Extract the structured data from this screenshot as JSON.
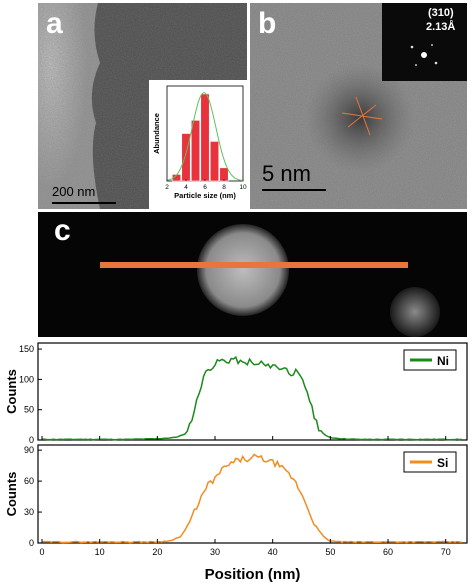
{
  "panels": {
    "a": {
      "letter": "a",
      "scalebar": "200 nm"
    },
    "b": {
      "letter": "b",
      "scalebar": "5 nm",
      "fft_plane": "(310)",
      "fft_spacing": "2.13Å"
    },
    "c": {
      "letter": "c"
    }
  },
  "colors": {
    "ni": "#1a8a1a",
    "si": "#f28c1e",
    "hist_bar": "#e8323c",
    "fit": "#5cc35c",
    "linescan": "#e8763a"
  },
  "chart_data": [
    {
      "type": "bar",
      "title": "",
      "xlabel": "Particle size (nm)",
      "ylabel": "Abundance",
      "xlim": [
        2,
        10
      ],
      "xticks": [
        "2",
        "4",
        "6",
        "8",
        "10"
      ],
      "bins": [
        3,
        4,
        5,
        6,
        7,
        8
      ],
      "values": [
        0.5,
        3.6,
        4.6,
        6.6,
        3.0,
        1.0
      ],
      "fit": "gaussian"
    },
    {
      "type": "line",
      "xlabel": "",
      "ylabel": "Counts",
      "xlim": [
        0,
        73
      ],
      "ylim": [
        0,
        160
      ],
      "yticks": [
        "0",
        "50",
        "100",
        "150"
      ],
      "series": [
        {
          "name": "Ni",
          "x": [
            0,
            5,
            10,
            15,
            20,
            23,
            25,
            26,
            27,
            28,
            29,
            30,
            31,
            32,
            33,
            34,
            35,
            36,
            37,
            38,
            39,
            40,
            41,
            42,
            43,
            44,
            45,
            46,
            47,
            48,
            49,
            50,
            52,
            55,
            60,
            65,
            70,
            73
          ],
          "y": [
            1,
            1,
            1,
            1,
            2,
            4,
            10,
            35,
            70,
            105,
            118,
            125,
            132,
            128,
            135,
            130,
            125,
            130,
            122,
            128,
            120,
            125,
            118,
            120,
            110,
            112,
            100,
            80,
            45,
            20,
            8,
            4,
            2,
            1,
            1,
            1,
            1,
            1
          ]
        }
      ]
    },
    {
      "type": "line",
      "xlabel": "Position (nm)",
      "ylabel": "Counts",
      "xlim": [
        0,
        73
      ],
      "ylim": [
        0,
        95
      ],
      "yticks": [
        "0",
        "30",
        "60",
        "90"
      ],
      "xticks": [
        "0",
        "10",
        "20",
        "30",
        "40",
        "50",
        "60",
        "70"
      ],
      "series": [
        {
          "name": "Si",
          "x": [
            0,
            5,
            10,
            15,
            20,
            22,
            24,
            25,
            26,
            27,
            28,
            29,
            30,
            31,
            32,
            33,
            34,
            35,
            36,
            37,
            38,
            39,
            40,
            41,
            42,
            43,
            44,
            45,
            46,
            47,
            48,
            49,
            50,
            52,
            55,
            60,
            65,
            70,
            73
          ],
          "y": [
            1,
            1,
            1,
            1,
            1,
            2,
            6,
            14,
            25,
            38,
            48,
            58,
            62,
            70,
            74,
            78,
            80,
            82,
            80,
            84,
            82,
            80,
            78,
            76,
            70,
            66,
            58,
            48,
            35,
            22,
            12,
            5,
            2,
            1,
            1,
            1,
            1,
            1,
            1
          ]
        }
      ]
    }
  ]
}
